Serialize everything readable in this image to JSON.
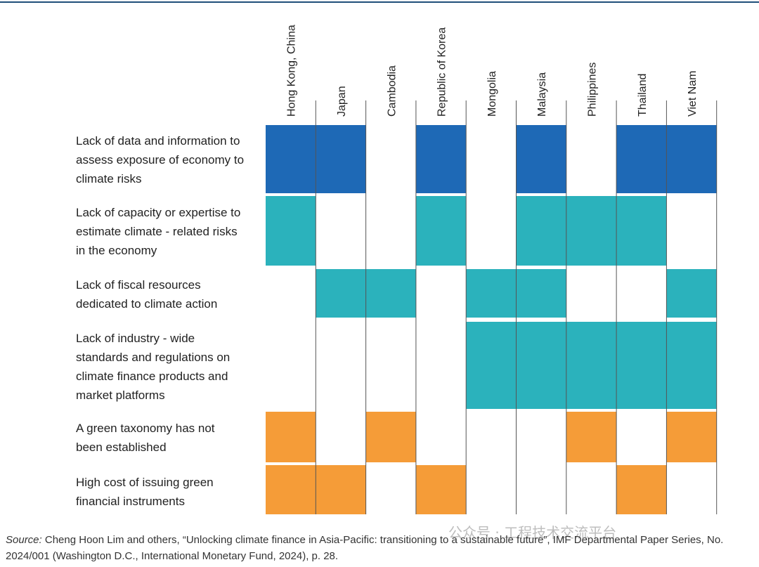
{
  "chart_data": {
    "type": "table",
    "title": "",
    "columns": [
      "Hong Kong, China",
      "Japan",
      "Cambodia",
      "Republic of Korea",
      "Mongolia",
      "Malaysia",
      "Philippines",
      "Thailand",
      "Viet Nam"
    ],
    "rows": [
      {
        "label_lines": [
          "Lack of data and information to",
          "assess exposure of economy to",
          "climate risks"
        ],
        "category": "data",
        "values": [
          1,
          1,
          0,
          1,
          0,
          1,
          0,
          1,
          1
        ]
      },
      {
        "label_lines": [
          "Lack of capacity or expertise to",
          "estimate climate - related risks",
          "in the economy"
        ],
        "category": "capacity",
        "values": [
          1,
          0,
          0,
          1,
          0,
          1,
          1,
          1,
          0
        ]
      },
      {
        "label_lines": [
          "Lack of fiscal resources",
          "dedicated to climate action"
        ],
        "category": "capacity",
        "values": [
          0,
          1,
          1,
          0,
          1,
          1,
          0,
          0,
          1
        ]
      },
      {
        "label_lines": [
          "Lack of industry - wide",
          "standards and regulations on",
          "climate finance products and",
          "market platforms"
        ],
        "category": "capacity",
        "values": [
          0,
          0,
          0,
          0,
          1,
          1,
          1,
          1,
          1
        ]
      },
      {
        "label_lines": [
          "A green taxonomy has not",
          "been established"
        ],
        "category": "market",
        "values": [
          1,
          0,
          1,
          0,
          0,
          0,
          1,
          0,
          1
        ]
      },
      {
        "label_lines": [
          "High cost of issuing green",
          "financial instruments"
        ],
        "category": "market",
        "values": [
          1,
          1,
          0,
          1,
          0,
          0,
          0,
          1,
          0
        ]
      }
    ],
    "colors": {
      "data": "#1e69b6",
      "capacity": "#2bb2bc",
      "market": "#f59c38",
      "gridline": "#555555",
      "topline": "#1f4e79"
    }
  },
  "source": {
    "prefix": "Source:",
    "text": " Cheng Hoon Lim and others, “Unlocking climate finance in Asia-Pacific: transitioning to a sustainable future”, IMF Departmental Paper Series, No. 2024/001 (Washington D.C., International Monetary Fund, 2024), p. 28."
  },
  "watermark": "公众号 · 工程技术交流平台"
}
